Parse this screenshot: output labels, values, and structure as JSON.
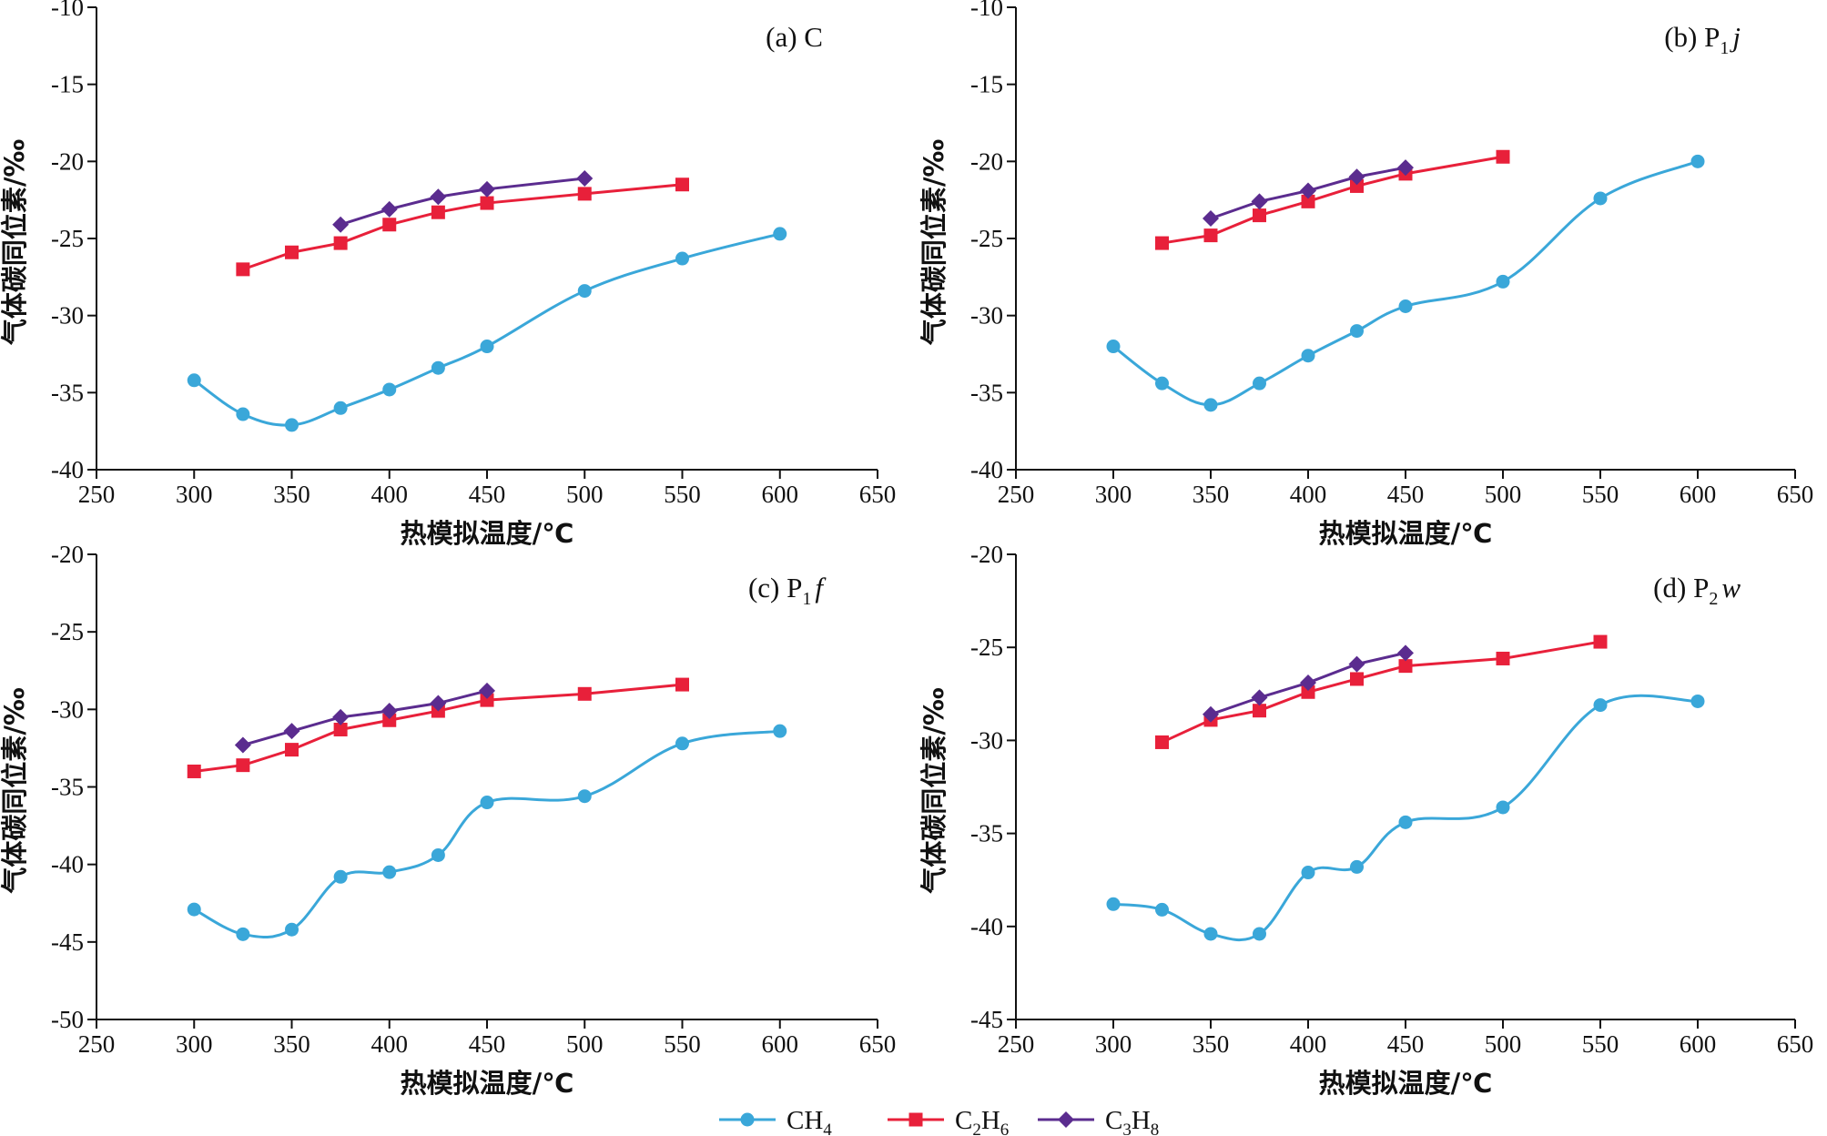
{
  "colors": {
    "CH4": "#3aa7d9",
    "C2H6": "#e8203a",
    "C3H8": "#5b2c8f"
  },
  "legend": [
    {
      "key": "CH4",
      "base": "CH",
      "sub1": "4",
      "mid": "",
      "sub2": "",
      "marker": "circle"
    },
    {
      "key": "C2H6",
      "base": "C",
      "sub1": "2",
      "mid": "H",
      "sub2": "6",
      "marker": "square"
    },
    {
      "key": "C3H8",
      "base": "C",
      "sub1": "3",
      "mid": "H",
      "sub2": "8",
      "marker": "diamond"
    }
  ],
  "chart_data": [
    {
      "type": "line",
      "label": {
        "prefix": "(a) C",
        "sub": "",
        "italic": ""
      },
      "xlabel": "热模拟温度/℃",
      "ylabel": "气体碳同位素/‰",
      "xlim": [
        250,
        650
      ],
      "xticks": [
        250,
        300,
        350,
        400,
        450,
        500,
        550,
        600,
        650
      ],
      "ylim": [
        -40,
        -10
      ],
      "yticks": [
        -40,
        -35,
        -30,
        -25,
        -20,
        -15,
        -10
      ],
      "series": [
        {
          "key": "CH4",
          "marker": "circle",
          "smooth": true,
          "x": [
            300,
            325,
            350,
            375,
            400,
            425,
            450,
            500,
            550,
            600
          ],
          "y": [
            -34.2,
            -36.4,
            -37.1,
            -36.0,
            -34.8,
            -33.4,
            -32.0,
            -28.4,
            -26.3,
            -24.7
          ]
        },
        {
          "key": "C2H6",
          "marker": "square",
          "smooth": false,
          "x": [
            325,
            350,
            375,
            400,
            425,
            450,
            500,
            550
          ],
          "y": [
            -27.0,
            -25.9,
            -25.3,
            -24.1,
            -23.3,
            -22.7,
            -22.1,
            -21.5
          ]
        },
        {
          "key": "C3H8",
          "marker": "diamond",
          "smooth": false,
          "x": [
            375,
            400,
            425,
            450,
            500
          ],
          "y": [
            -24.1,
            -23.1,
            -22.3,
            -21.8,
            -21.1
          ]
        }
      ]
    },
    {
      "type": "line",
      "label": {
        "prefix": "(b) P",
        "sub": "1",
        "italic": "j"
      },
      "xlabel": "热模拟温度/℃",
      "ylabel": "气体碳同位素/‰",
      "xlim": [
        250,
        650
      ],
      "xticks": [
        250,
        300,
        350,
        400,
        450,
        500,
        550,
        600,
        650
      ],
      "ylim": [
        -40,
        -10
      ],
      "yticks": [
        -40,
        -35,
        -30,
        -25,
        -20,
        -15,
        -10
      ],
      "series": [
        {
          "key": "CH4",
          "marker": "circle",
          "smooth": true,
          "x": [
            300,
            325,
            350,
            375,
            400,
            425,
            450,
            500,
            550,
            600
          ],
          "y": [
            -32.0,
            -34.4,
            -35.8,
            -34.4,
            -32.6,
            -31.0,
            -29.4,
            -27.8,
            -22.4,
            -20.0
          ]
        },
        {
          "key": "C2H6",
          "marker": "square",
          "smooth": false,
          "x": [
            325,
            350,
            375,
            400,
            425,
            450,
            500
          ],
          "y": [
            -25.3,
            -24.8,
            -23.5,
            -22.6,
            -21.6,
            -20.8,
            -19.7
          ]
        },
        {
          "key": "C3H8",
          "marker": "diamond",
          "smooth": false,
          "x": [
            350,
            375,
            400,
            425,
            450
          ],
          "y": [
            -23.7,
            -22.6,
            -21.9,
            -21.0,
            -20.4
          ]
        }
      ]
    },
    {
      "type": "line",
      "label": {
        "prefix": "(c) P",
        "sub": "1",
        "italic": "f"
      },
      "xlabel": "热模拟温度/℃",
      "ylabel": "气体碳同位素/‰",
      "xlim": [
        250,
        650
      ],
      "xticks": [
        250,
        300,
        350,
        400,
        450,
        500,
        550,
        600,
        650
      ],
      "ylim": [
        -50,
        -20
      ],
      "yticks": [
        -50,
        -45,
        -40,
        -35,
        -30,
        -25,
        -20
      ],
      "series": [
        {
          "key": "CH4",
          "marker": "circle",
          "smooth": true,
          "x": [
            300,
            325,
            350,
            375,
            400,
            425,
            450,
            500,
            550,
            600
          ],
          "y": [
            -42.9,
            -44.5,
            -44.2,
            -40.8,
            -40.5,
            -39.4,
            -36.0,
            -35.6,
            -32.2,
            -31.4
          ]
        },
        {
          "key": "C2H6",
          "marker": "square",
          "smooth": false,
          "x": [
            300,
            325,
            350,
            375,
            400,
            425,
            450,
            500,
            550
          ],
          "y": [
            -34.0,
            -33.6,
            -32.6,
            -31.3,
            -30.7,
            -30.1,
            -29.4,
            -29.0,
            -28.4
          ]
        },
        {
          "key": "C3H8",
          "marker": "diamond",
          "smooth": false,
          "x": [
            325,
            350,
            375,
            400,
            425,
            450
          ],
          "y": [
            -32.3,
            -31.4,
            -30.5,
            -30.1,
            -29.6,
            -28.8
          ]
        }
      ]
    },
    {
      "type": "line",
      "label": {
        "prefix": "(d) P",
        "sub": "2",
        "italic": "w"
      },
      "xlabel": "热模拟温度/℃",
      "ylabel": "气体碳同位素/‰",
      "xlim": [
        250,
        650
      ],
      "xticks": [
        250,
        300,
        350,
        400,
        450,
        500,
        550,
        600,
        650
      ],
      "ylim": [
        -45,
        -20
      ],
      "yticks": [
        -45,
        -40,
        -35,
        -30,
        -25,
        -20
      ],
      "series": [
        {
          "key": "CH4",
          "marker": "circle",
          "smooth": true,
          "x": [
            300,
            325,
            350,
            375,
            400,
            425,
            450,
            500,
            550,
            600
          ],
          "y": [
            -38.8,
            -39.1,
            -40.4,
            -40.4,
            -37.1,
            -36.8,
            -34.4,
            -33.6,
            -28.1,
            -27.9
          ]
        },
        {
          "key": "C2H6",
          "marker": "square",
          "smooth": false,
          "x": [
            325,
            350,
            375,
            400,
            425,
            450,
            500,
            550
          ],
          "y": [
            -30.1,
            -28.9,
            -28.4,
            -27.4,
            -26.7,
            -26.0,
            -25.6,
            -24.7
          ]
        },
        {
          "key": "C3H8",
          "marker": "diamond",
          "smooth": false,
          "x": [
            350,
            375,
            400,
            425,
            450
          ],
          "y": [
            -28.6,
            -27.7,
            -26.9,
            -25.9,
            -25.3
          ]
        }
      ]
    }
  ]
}
